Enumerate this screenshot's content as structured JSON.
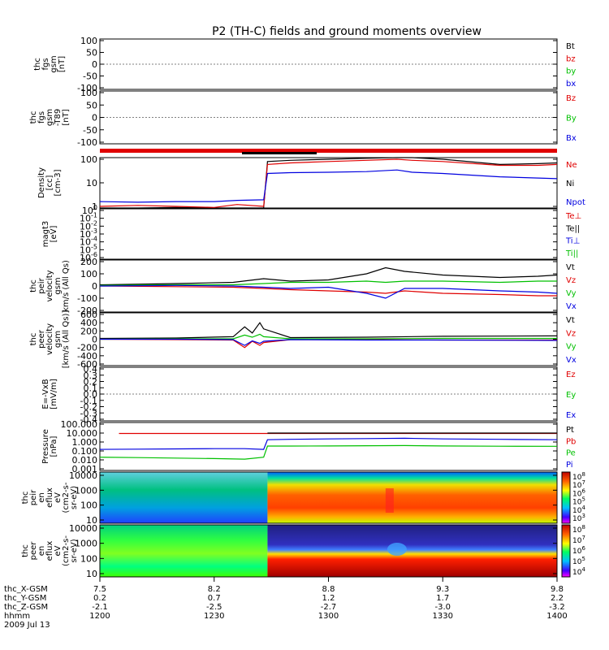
{
  "chart_data": {
    "type": "line",
    "title": "P2 (TH-C) fields and ground moments overview",
    "grid": false,
    "x_time_range": [
      "12:00",
      "14:00"
    ],
    "panels": [
      {
        "id": "fgs",
        "ylabel": [
          "thc",
          "fgs",
          "gsm",
          "[nT]"
        ],
        "ylim": [
          -100,
          100
        ],
        "yticks": [
          "100",
          "50",
          "0",
          "-50",
          "-100"
        ],
        "legend": [
          {
            "name": "Bt",
            "color": "#000000"
          },
          {
            "name": "bz",
            "color": "#e00000"
          },
          {
            "name": "by",
            "color": "#00c000"
          },
          {
            "name": "bx",
            "color": "#0000e0"
          }
        ]
      },
      {
        "id": "fgs_t89",
        "ylabel": [
          "thc",
          "fgs",
          "gsm",
          "-T89",
          "[nT]"
        ],
        "ylim": [
          -100,
          100
        ],
        "yticks": [
          "100",
          "50",
          "0",
          "-50",
          "-100"
        ],
        "legend": [
          {
            "name": "Bz",
            "color": "#e00000"
          },
          {
            "name": "By",
            "color": "#00c000"
          },
          {
            "name": "Bx",
            "color": "#0000e0"
          }
        ]
      },
      {
        "id": "density",
        "ylabel": [
          "Density",
          "[cc]",
          "[cm-3]"
        ],
        "scale": "log",
        "yticks": [
          "100",
          "10",
          "1"
        ],
        "legend": [
          {
            "name": "Ne",
            "color": "#e00000"
          },
          {
            "name": "Ni",
            "color": "#000000"
          },
          {
            "name": "Npot",
            "color": "#0000e0"
          }
        ],
        "series": [
          {
            "name": "Ni",
            "color": "#000000",
            "x": [
              "12:00",
              "12:10",
              "12:20",
              "12:30",
              "12:36",
              "12:43",
              "12:44",
              "12:50",
              "13:00",
              "13:10",
              "13:18",
              "13:22",
              "13:30",
              "13:45",
              "13:55",
              "14:00"
            ],
            "y": [
              0.6,
              0.8,
              0.9,
              0.7,
              0.5,
              0.6,
              80,
              90,
              100,
              110,
              140,
              120,
              100,
              60,
              65,
              70
            ]
          },
          {
            "name": "Ne",
            "color": "#e00000",
            "x": [
              "12:00",
              "12:10",
              "12:20",
              "12:30",
              "12:36",
              "12:43",
              "12:44",
              "12:50",
              "13:00",
              "13:10",
              "13:18",
              "13:22",
              "13:30",
              "13:45",
              "13:55",
              "14:00"
            ],
            "y": [
              1.0,
              1.1,
              1.0,
              0.9,
              1.2,
              1.0,
              60,
              70,
              80,
              90,
              100,
              90,
              80,
              55,
              55,
              60
            ]
          },
          {
            "name": "Npot",
            "color": "#0000e0",
            "x": [
              "12:00",
              "12:10",
              "12:20",
              "12:30",
              "12:36",
              "12:43",
              "12:44",
              "12:50",
              "13:00",
              "13:10",
              "13:18",
              "13:22",
              "13:30",
              "13:45",
              "13:55",
              "14:00"
            ],
            "y": [
              1.6,
              1.5,
              1.6,
              1.6,
              1.8,
              1.9,
              25,
              27,
              28,
              30,
              35,
              28,
              25,
              18,
              16,
              15
            ]
          }
        ]
      },
      {
        "id": "magt3",
        "ylabel": [
          "magt3",
          "[eV]"
        ],
        "scale": "log",
        "yticks": [
          "10^0",
          "10^-1",
          "10^-2",
          "10^-3",
          "10^-4",
          "10^-5",
          "10^-6"
        ],
        "legend": [
          {
            "name": "Te⊥",
            "color": "#e00000"
          },
          {
            "name": "Te||",
            "color": "#000000"
          },
          {
            "name": "Ti⊥",
            "color": "#0000e0"
          },
          {
            "name": "Ti||",
            "color": "#00c000"
          }
        ]
      },
      {
        "id": "peir_velocity",
        "ylabel": [
          "thc",
          "peir",
          "velocity",
          "gsm",
          "km/s (All Qs)"
        ],
        "ylim": [
          -200,
          200
        ],
        "yticks": [
          "200",
          "100",
          "0",
          "-100",
          "-200"
        ],
        "legend": [
          {
            "name": "Vt",
            "color": "#000000"
          },
          {
            "name": "Vz",
            "color": "#e00000"
          },
          {
            "name": "Vy",
            "color": "#00c000"
          },
          {
            "name": "Vx",
            "color": "#0000e0"
          }
        ],
        "series": [
          {
            "name": "Vt",
            "color": "#000000",
            "x": [
              "12:00",
              "12:20",
              "12:35",
              "12:43",
              "12:50",
              "13:00",
              "13:10",
              "13:15",
              "13:20",
              "13:30",
              "13:45",
              "13:55",
              "14:00"
            ],
            "y": [
              10,
              20,
              30,
              60,
              40,
              50,
              100,
              150,
              120,
              90,
              70,
              80,
              90
            ]
          },
          {
            "name": "Vz",
            "color": "#e00000",
            "x": [
              "12:00",
              "12:20",
              "12:35",
              "12:43",
              "12:50",
              "13:00",
              "13:10",
              "13:15",
              "13:20",
              "13:30",
              "13:45",
              "13:55",
              "14:00"
            ],
            "y": [
              0,
              -5,
              -10,
              -20,
              -30,
              -40,
              -50,
              -60,
              -40,
              -60,
              -70,
              -80,
              -80
            ]
          },
          {
            "name": "Vy",
            "color": "#00c000",
            "x": [
              "12:00",
              "12:20",
              "12:35",
              "12:43",
              "12:50",
              "13:00",
              "13:10",
              "13:15",
              "13:20",
              "13:30",
              "13:45",
              "13:55",
              "14:00"
            ],
            "y": [
              5,
              10,
              10,
              20,
              30,
              30,
              40,
              30,
              40,
              40,
              30,
              40,
              40
            ]
          },
          {
            "name": "Vx",
            "color": "#0000e0",
            "x": [
              "12:00",
              "12:20",
              "12:35",
              "12:43",
              "12:50",
              "13:00",
              "13:10",
              "13:15",
              "13:20",
              "13:30",
              "13:45",
              "13:55",
              "14:00"
            ],
            "y": [
              0,
              5,
              0,
              -10,
              -20,
              -10,
              -60,
              -100,
              -20,
              -20,
              -40,
              -50,
              -60
            ]
          }
        ]
      },
      {
        "id": "peer_velocity",
        "ylabel": [
          "thc",
          "peer",
          "velocity",
          "gsm",
          "[km/s (All Qs)]"
        ],
        "ylim": [
          -600,
          600
        ],
        "yticks": [
          "600",
          "400",
          "200",
          "0",
          "-200",
          "-400",
          "-600"
        ],
        "legend": [
          {
            "name": "Vt",
            "color": "#000000"
          },
          {
            "name": "Vz",
            "color": "#e00000"
          },
          {
            "name": "Vy",
            "color": "#00c000"
          },
          {
            "name": "Vx",
            "color": "#0000e0"
          }
        ],
        "series": [
          {
            "name": "Vt",
            "color": "#000000",
            "x": [
              "12:00",
              "12:20",
              "12:35",
              "12:38",
              "12:40",
              "12:42",
              "12:43",
              "12:50",
              "13:10",
              "13:30",
              "14:00"
            ],
            "y": [
              20,
              30,
              60,
              300,
              150,
              400,
              250,
              40,
              50,
              70,
              80
            ]
          },
          {
            "name": "Vz",
            "color": "#e00000",
            "x": [
              "12:00",
              "12:20",
              "12:35",
              "12:38",
              "12:40",
              "12:42",
              "12:43",
              "12:50",
              "13:10",
              "13:30",
              "14:00"
            ],
            "y": [
              0,
              -10,
              -20,
              -200,
              -50,
              -150,
              -80,
              -10,
              -10,
              -20,
              -20
            ]
          },
          {
            "name": "Vy",
            "color": "#00c000",
            "x": [
              "12:00",
              "12:20",
              "12:35",
              "12:38",
              "12:40",
              "12:42",
              "12:43",
              "12:50",
              "13:10",
              "13:30",
              "14:00"
            ],
            "y": [
              0,
              10,
              10,
              100,
              50,
              120,
              60,
              10,
              10,
              20,
              20
            ]
          },
          {
            "name": "Vx",
            "color": "#0000e0",
            "x": [
              "12:00",
              "12:20",
              "12:35",
              "12:38",
              "12:40",
              "12:42",
              "12:43",
              "12:50",
              "13:10",
              "13:30",
              "14:00"
            ],
            "y": [
              0,
              0,
              -10,
              -150,
              -40,
              -100,
              -50,
              -10,
              -20,
              -20,
              -30
            ]
          }
        ]
      },
      {
        "id": "efield",
        "ylabel": [
          "E=-VxB",
          "[mV/m]"
        ],
        "ylim": [
          -0.4,
          0.4
        ],
        "yticks": [
          "0.4",
          "0.3",
          "0.2",
          "0.1",
          "0.0",
          "-0.1",
          "-0.2",
          "-0.3",
          "-0.4"
        ],
        "legend": [
          {
            "name": "Ez",
            "color": "#e00000"
          },
          {
            "name": "Ey",
            "color": "#00c000"
          },
          {
            "name": "Ex",
            "color": "#0000e0"
          }
        ]
      },
      {
        "id": "pressure",
        "ylabel": [
          "Pressure",
          "[nPa]"
        ],
        "scale": "log",
        "yticks": [
          "100.000",
          "10.000",
          "1.000",
          "0.100",
          "0.010",
          "0.001"
        ],
        "legend": [
          {
            "name": "Pt",
            "color": "#000000"
          },
          {
            "name": "Pb",
            "color": "#e00000"
          },
          {
            "name": "Pe",
            "color": "#00c000"
          },
          {
            "name": "Pi",
            "color": "#0000e0"
          }
        ],
        "series": [
          {
            "name": "Pb",
            "color": "#e00000",
            "x": [
              "12:05",
              "12:15",
              "12:25",
              "12:30",
              "12:40",
              "12:44",
              "13:00",
              "13:20",
              "13:40",
              "14:00"
            ],
            "y": [
              9,
              9,
              9,
              9,
              9,
              9,
              9,
              9,
              9,
              9
            ]
          },
          {
            "name": "Pt",
            "color": "#000000",
            "x": [
              "12:44",
              "13:00",
              "13:20",
              "13:40",
              "14:00"
            ],
            "y": [
              10,
              10,
              10,
              10,
              10
            ]
          },
          {
            "name": "Pi",
            "color": "#0000e0",
            "x": [
              "12:00",
              "12:10",
              "12:20",
              "12:30",
              "12:38",
              "12:43",
              "12:44",
              "12:50",
              "13:00",
              "13:10",
              "13:20",
              "13:30",
              "13:45",
              "14:00"
            ],
            "y": [
              0.15,
              0.16,
              0.17,
              0.18,
              0.18,
              0.15,
              1.8,
              2.0,
              2.2,
              2.4,
              2.6,
              2.2,
              2.0,
              1.8
            ]
          },
          {
            "name": "Pe",
            "color": "#00c000",
            "x": [
              "12:00",
              "12:10",
              "12:20",
              "12:30",
              "12:38",
              "12:43",
              "12:44",
              "12:50",
              "13:00",
              "13:10",
              "13:20",
              "13:30",
              "13:45",
              "14:00"
            ],
            "y": [
              0.02,
              0.018,
              0.016,
              0.014,
              0.012,
              0.02,
              0.35,
              0.35,
              0.36,
              0.38,
              0.4,
              0.36,
              0.34,
              0.33
            ]
          }
        ]
      },
      {
        "id": "peir_spec",
        "type": "heatmap",
        "ylabel": [
          "thc",
          "peir",
          "en",
          "eflux",
          "eV",
          "(cm2-s-",
          "sr-eV)"
        ],
        "scale": "log",
        "yticks": [
          "10000",
          "1000",
          "100",
          "10"
        ],
        "colorbar_ticks": [
          "10^8",
          "10^7",
          "10^6",
          "10^5",
          "10^4",
          "10^3"
        ]
      },
      {
        "id": "peer_spec",
        "type": "heatmap",
        "ylabel": [
          "thc",
          "peer",
          "en",
          "eflux",
          "eV",
          "(cm2-s-",
          "sr-eV)"
        ],
        "scale": "log",
        "yticks": [
          "10000",
          "1000",
          "100",
          "10"
        ],
        "colorbar_ticks": [
          "10^8",
          "10^7",
          "10^6",
          "10^5",
          "10^4"
        ]
      }
    ],
    "footer": {
      "rows": [
        {
          "label": "thc_X-GSM",
          "values": [
            "7.5",
            "8.2",
            "8.8",
            "9.3",
            "9.8"
          ]
        },
        {
          "label": "thc_Y-GSM",
          "values": [
            "0.2",
            "0.7",
            "1.2",
            "1.7",
            "2.2"
          ]
        },
        {
          "label": "thc_Z-GSM",
          "values": [
            "-2.1",
            "-2.5",
            "-2.7",
            "-3.0",
            "-3.2"
          ]
        },
        {
          "label": "hhmm",
          "values": [
            "1200",
            "1230",
            "1300",
            "1330",
            "1400"
          ]
        }
      ],
      "date": "2009 Jul 13"
    }
  }
}
